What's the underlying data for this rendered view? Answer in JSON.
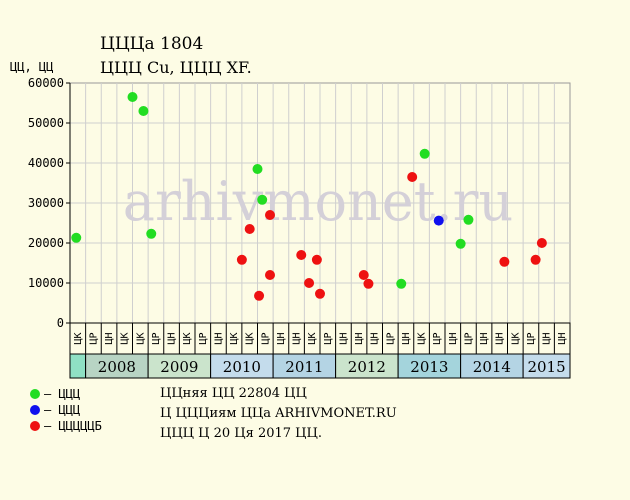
{
  "title_line1": "ЦЦЦа 1804",
  "title_line2": "ЦЦЦ Cu, ЦЦЦ XF.",
  "ylabel": "ЦЦ, ЦЦ",
  "watermark": "arhivmonet.ru",
  "legend": [
    {
      "label": "– ЦЦЦ",
      "color": "#22dd22"
    },
    {
      "label": "– ЦЦЦ",
      "color": "#1010ee"
    },
    {
      "label": "– ЦЦЦЦЦБ",
      "color": "#ee1111"
    }
  ],
  "notes": [
    "ЦЦняя ЦЦ 22804 ЦЦ",
    "Ц ЦЦЦиям ЦЦа ARHIVMONET.RU",
    "ЦЦЦ Ц 20 Ця 2017 ЦЦ."
  ],
  "chart_data": {
    "type": "scatter",
    "ylim": [
      0,
      60000
    ],
    "yticks": [
      0,
      10000,
      20000,
      30000,
      40000,
      50000,
      60000
    ],
    "grid": true,
    "month_labels": [
      "ЦК",
      "ЦР",
      "ЦН",
      "ЦК",
      "ЦК",
      "ЦР",
      "ЦН",
      "ЦК",
      "ЦР",
      "ЦН",
      "ЦК",
      "ЦК",
      "ЦР",
      "ЦН",
      "ЦН",
      "ЦК",
      "ЦР",
      "ЦН",
      "ЦН",
      "ЦН",
      "ЦР",
      "ЦН",
      "ЦК",
      "ЦР",
      "ЦН",
      "ЦР",
      "ЦН",
      "ЦН",
      "ЦК",
      "ЦР",
      "ЦН",
      "ЦН"
    ],
    "years": [
      {
        "label": "",
        "span": 1,
        "color": "#8fe0c4"
      },
      {
        "label": "2008",
        "span": 4,
        "color": "#b8d4c4"
      },
      {
        "label": "2009",
        "span": 4,
        "color": "#cbe4cc"
      },
      {
        "label": "2010",
        "span": 4,
        "color": "#c4dcec"
      },
      {
        "label": "2011",
        "span": 4,
        "color": "#b4d4e4"
      },
      {
        "label": "2012",
        "span": 4,
        "color": "#cbe4cc"
      },
      {
        "label": "2013",
        "span": 4,
        "color": "#a4d4dc"
      },
      {
        "label": "2014",
        "span": 4,
        "color": "#b4d4e4"
      },
      {
        "label": "2015",
        "span": 3,
        "color": "#c4dcec"
      }
    ],
    "series": [
      {
        "color": "#22dd22",
        "points": [
          [
            0.4,
            21300
          ],
          [
            4.0,
            56500
          ],
          [
            4.7,
            53000
          ],
          [
            5.2,
            22300
          ],
          [
            12.0,
            38500
          ],
          [
            12.3,
            30800
          ],
          [
            21.2,
            9800
          ],
          [
            22.7,
            42300
          ],
          [
            25.0,
            19800
          ],
          [
            25.5,
            25800
          ]
        ]
      },
      {
        "color": "#1010ee",
        "points": [
          [
            23.6,
            25600
          ]
        ]
      },
      {
        "color": "#ee1111",
        "points": [
          [
            11.0,
            15800
          ],
          [
            11.5,
            23500
          ],
          [
            12.1,
            6800
          ],
          [
            12.8,
            27000
          ],
          [
            12.8,
            12000
          ],
          [
            14.8,
            17000
          ],
          [
            15.3,
            10000
          ],
          [
            15.8,
            15800
          ],
          [
            16.0,
            7300
          ],
          [
            18.8,
            12000
          ],
          [
            19.1,
            9800
          ],
          [
            21.9,
            36500
          ],
          [
            27.8,
            15300
          ],
          [
            29.8,
            15800
          ],
          [
            30.2,
            20000
          ]
        ]
      }
    ]
  }
}
